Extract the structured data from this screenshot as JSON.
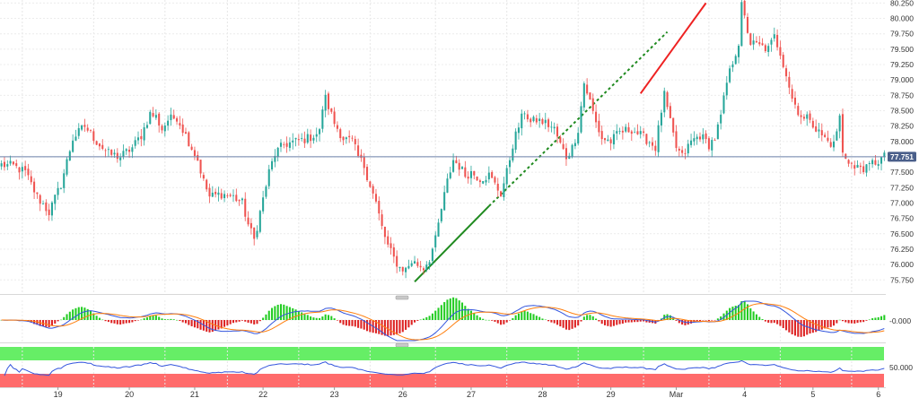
{
  "chart_data": [
    {
      "type": "candlestick",
      "panel": "price",
      "x_labels": [
        "19",
        "20",
        "21",
        "22",
        "23",
        "26",
        "27",
        "28",
        "29",
        "Mar",
        "4",
        "5",
        "6"
      ],
      "y_ticks": [
        80.25,
        80.0,
        79.75,
        79.5,
        79.25,
        79.0,
        78.75,
        78.5,
        78.25,
        78.0,
        77.75,
        77.5,
        77.25,
        77.0,
        76.75,
        76.5,
        76.25,
        76.0,
        75.75
      ],
      "y_tick_labels": [
        "80.250",
        "80.000",
        "79.750",
        "79.500",
        "79.250",
        "79.000",
        "78.750",
        "78.500",
        "78.250",
        "78.000",
        "77.750",
        "77.500",
        "77.250",
        "77.000",
        "76.750",
        "76.500",
        "76.250",
        "76.000",
        "75.750"
      ],
      "ylim": [
        75.55,
        80.27
      ],
      "current_price": 77.751,
      "current_price_label": "77.751",
      "price_path": [
        [
          0,
          77.62
        ],
        [
          4,
          77.6
        ],
        [
          8,
          77.5
        ],
        [
          12,
          77.1
        ],
        [
          16,
          76.85
        ],
        [
          20,
          77.3
        ],
        [
          24,
          78.05
        ],
        [
          28,
          78.25
        ],
        [
          32,
          78.0
        ],
        [
          36,
          77.8
        ],
        [
          40,
          77.75
        ],
        [
          44,
          77.9
        ],
        [
          47,
          78.1
        ],
        [
          50,
          78.45
        ],
        [
          52,
          78.4
        ],
        [
          54,
          78.2
        ],
        [
          56,
          78.35
        ],
        [
          59,
          78.4
        ],
        [
          63,
          78.0
        ],
        [
          66,
          77.7
        ],
        [
          68,
          77.35
        ],
        [
          70,
          77.1
        ],
        [
          74,
          77.15
        ],
        [
          78,
          77.1
        ],
        [
          81,
          77.0
        ],
        [
          83,
          76.65
        ],
        [
          85,
          76.4
        ],
        [
          87,
          76.85
        ],
        [
          90,
          77.5
        ],
        [
          92,
          77.8
        ],
        [
          95,
          77.95
        ],
        [
          99,
          78.0
        ],
        [
          103,
          78.05
        ],
        [
          107,
          78.15
        ],
        [
          108,
          78.55
        ],
        [
          109,
          78.7
        ],
        [
          112,
          78.3
        ],
        [
          115,
          78.05
        ],
        [
          118,
          78.0
        ],
        [
          120,
          77.75
        ],
        [
          122,
          77.6
        ],
        [
          124,
          77.3
        ],
        [
          126,
          77.0
        ],
        [
          128,
          76.6
        ],
        [
          130,
          76.3
        ],
        [
          132,
          76.1
        ],
        [
          134,
          75.95
        ],
        [
          136,
          75.92
        ],
        [
          138,
          76.05
        ],
        [
          140,
          76.0
        ],
        [
          142,
          75.95
        ],
        [
          144,
          76.1
        ],
        [
          146,
          76.4
        ],
        [
          148,
          76.9
        ],
        [
          150,
          77.35
        ],
        [
          152,
          77.7
        ],
        [
          154,
          77.6
        ],
        [
          156,
          77.45
        ],
        [
          158,
          77.5
        ],
        [
          161,
          77.4
        ],
        [
          164,
          77.45
        ],
        [
          166,
          77.3
        ],
        [
          168,
          77.15
        ],
        [
          170,
          77.5
        ],
        [
          172,
          77.95
        ],
        [
          174,
          78.25
        ],
        [
          176,
          78.5
        ],
        [
          178,
          78.3
        ],
        [
          180,
          78.35
        ],
        [
          183,
          78.3
        ],
        [
          186,
          78.2
        ],
        [
          188,
          77.95
        ],
        [
          190,
          77.75
        ],
        [
          192,
          77.9
        ],
        [
          194,
          78.2
        ],
        [
          196,
          78.95
        ],
        [
          198,
          78.65
        ],
        [
          200,
          78.3
        ],
        [
          202,
          78.05
        ],
        [
          205,
          78.0
        ],
        [
          208,
          78.15
        ],
        [
          212,
          78.2
        ],
        [
          215,
          78.1
        ],
        [
          218,
          78.0
        ],
        [
          220,
          77.9
        ],
        [
          222,
          78.5
        ],
        [
          223,
          78.75
        ],
        [
          225,
          78.3
        ],
        [
          227,
          77.9
        ],
        [
          229,
          77.75
        ],
        [
          232,
          78.0
        ],
        [
          235,
          78.1
        ],
        [
          238,
          77.95
        ],
        [
          240,
          78.05
        ],
        [
          242,
          78.4
        ],
        [
          244,
          78.95
        ],
        [
          246,
          79.3
        ],
        [
          248,
          79.6
        ],
        [
          249,
          80.2
        ],
        [
          250,
          80.0
        ],
        [
          252,
          79.6
        ],
        [
          255,
          79.55
        ],
        [
          258,
          79.5
        ],
        [
          260,
          79.7
        ],
        [
          262,
          79.45
        ],
        [
          264,
          79.1
        ],
        [
          266,
          78.7
        ],
        [
          268,
          78.5
        ],
        [
          270,
          78.35
        ],
        [
          272,
          78.4
        ],
        [
          274,
          78.2
        ],
        [
          276,
          78.1
        ],
        [
          278,
          78.0
        ],
        [
          280,
          77.95
        ],
        [
          282,
          78.4
        ],
        [
          283,
          77.8
        ],
        [
          285,
          77.7
        ],
        [
          287,
          77.55
        ],
        [
          289,
          77.6
        ],
        [
          291,
          77.55
        ],
        [
          293,
          77.65
        ],
        [
          295,
          77.68
        ],
        [
          297,
          77.75
        ]
      ],
      "annotations": [
        {
          "type": "trendline",
          "color": "#1f8a1f",
          "style": "solid",
          "from": [
            139,
            75.72
          ],
          "to": [
            164,
            76.95
          ]
        },
        {
          "type": "trendline",
          "color": "#1f8a1f",
          "style": "dotted",
          "from": [
            164,
            76.95
          ],
          "to": [
            224,
            79.78
          ]
        },
        {
          "type": "trendline",
          "color": "#ee2222",
          "style": "solid",
          "from": [
            215,
            78.78
          ],
          "to": [
            237,
            80.25
          ]
        }
      ]
    },
    {
      "type": "histogram",
      "panel": "macd",
      "y_tick_labels": [
        "-0.000"
      ],
      "line_colors": [
        "#3355dd",
        "#ff7f0e"
      ],
      "hist_colors": {
        "positive": "#22cc22",
        "negative": "#dd2222"
      }
    },
    {
      "type": "line",
      "panel": "rsi",
      "y_tick_labels": [
        "50.000"
      ],
      "line_color": "#3355dd",
      "zone_colors": {
        "upper": "#66ee66",
        "lower": "#ff6b6b"
      }
    }
  ]
}
